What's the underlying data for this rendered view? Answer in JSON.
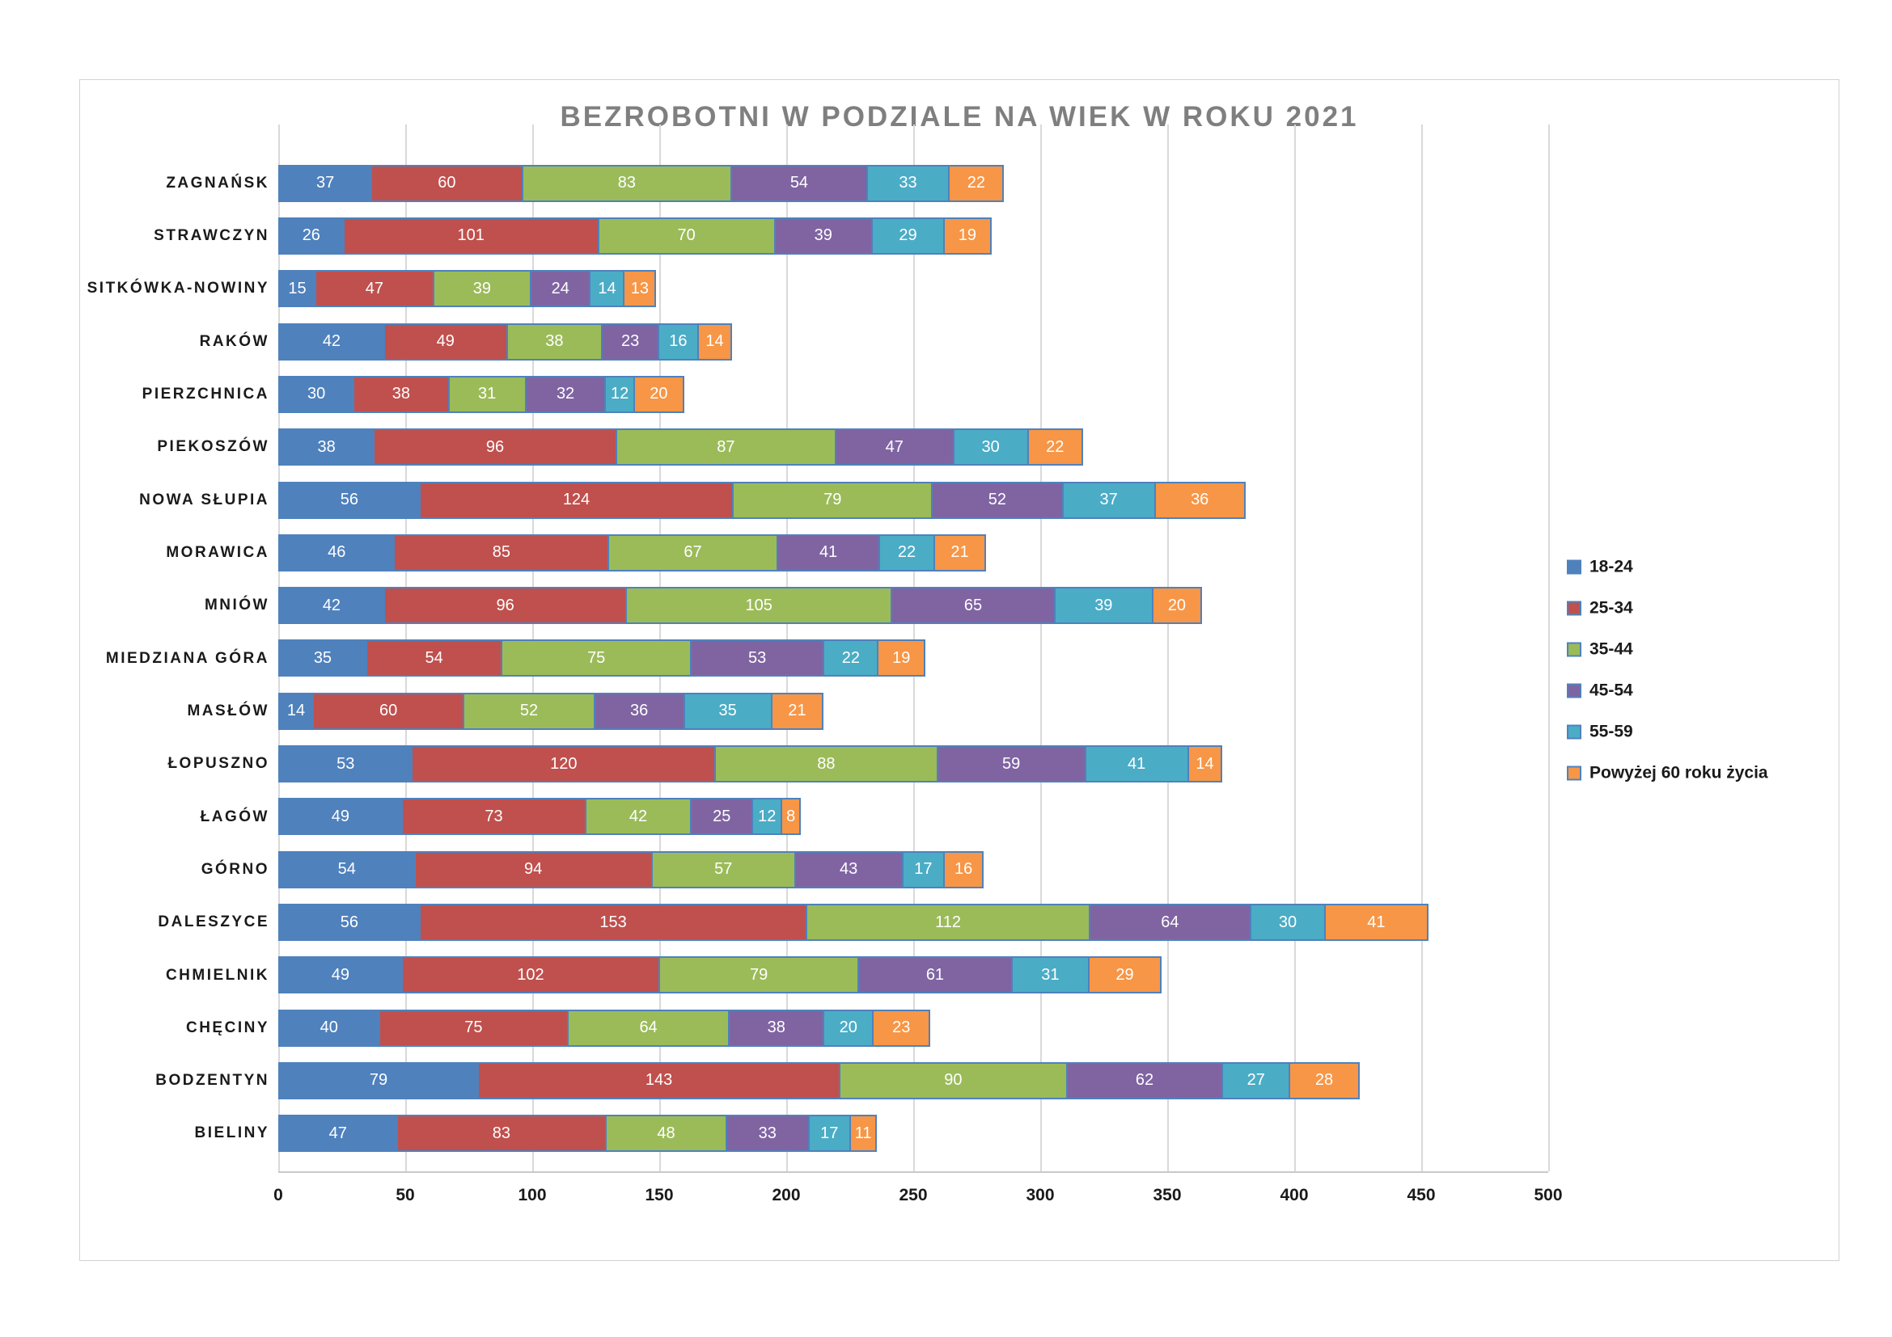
{
  "chart_data": {
    "type": "bar",
    "orientation": "horizontal",
    "stacked": true,
    "title": "BEZROBOTNI W PODZIALE NA WIEK W ROKU 2021",
    "title_color": "#7f7f7f",
    "categories": [
      "ZAGNAŃSK",
      "STRAWCZYN",
      "SITKÓWKA-NOWINY",
      "RAKÓW",
      "PIERZCHNICA",
      "PIEKOSZÓW",
      "NOWA SŁUPIA",
      "MORAWICA",
      "MNIÓW",
      "MIEDZIANA GÓRA",
      "MASŁÓW",
      "ŁOPUSZNO",
      "ŁAGÓW",
      "GÓRNO",
      "DALESZYCE",
      "CHMIELNIK",
      "CHĘCINY",
      "BODZENTYN",
      "BIELINY"
    ],
    "series": [
      {
        "name": "18-24",
        "color": "#4F81BD",
        "values": [
          37,
          26,
          15,
          42,
          30,
          38,
          56,
          46,
          42,
          35,
          14,
          53,
          49,
          54,
          56,
          49,
          40,
          79,
          47
        ]
      },
      {
        "name": "25-34",
        "color": "#C0504D",
        "values": [
          60,
          101,
          47,
          49,
          38,
          96,
          124,
          85,
          96,
          54,
          60,
          120,
          73,
          94,
          153,
          102,
          75,
          143,
          83
        ]
      },
      {
        "name": "35-44",
        "color": "#9BBB59",
        "values": [
          83,
          70,
          39,
          38,
          31,
          87,
          79,
          67,
          105,
          75,
          52,
          88,
          42,
          57,
          112,
          79,
          64,
          90,
          48
        ]
      },
      {
        "name": "45-54",
        "color": "#8064A2",
        "values": [
          54,
          39,
          24,
          23,
          32,
          47,
          52,
          41,
          65,
          53,
          36,
          59,
          25,
          43,
          64,
          61,
          38,
          62,
          33
        ]
      },
      {
        "name": "55-59",
        "color": "#4BACC6",
        "values": [
          33,
          29,
          14,
          16,
          12,
          30,
          37,
          22,
          39,
          22,
          35,
          41,
          12,
          17,
          30,
          31,
          20,
          27,
          17
        ]
      },
      {
        "name": "Powyżej 60 roku życia",
        "color": "#F79646",
        "values": [
          22,
          19,
          13,
          14,
          20,
          22,
          36,
          21,
          20,
          19,
          21,
          14,
          8,
          16,
          41,
          29,
          23,
          28,
          11
        ]
      }
    ],
    "x_axis": {
      "min": 0,
      "max": 500,
      "tick_step": 50,
      "ticks": [
        0,
        50,
        100,
        150,
        200,
        250,
        300,
        350,
        400,
        450,
        500
      ]
    },
    "value_labels": "inside-white",
    "grid": true,
    "gridline_color": "#d9d9d9",
    "bar_border_color": "#4F81BD",
    "legend_position": "right"
  }
}
